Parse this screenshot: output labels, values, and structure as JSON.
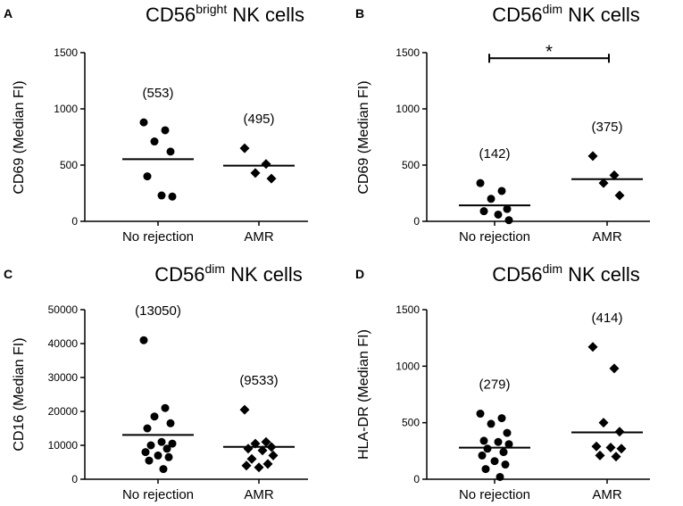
{
  "chart_data": [
    {
      "type": "scatter",
      "panel": "A",
      "title": {
        "main": "CD56",
        "sup": "bright",
        "rest": " NK cells"
      },
      "ylabel": "CD69 (Median FI)",
      "ylim": [
        0,
        1500
      ],
      "yticks": [
        "0",
        "500",
        "1000",
        "1500"
      ],
      "categories": [
        "No rejection",
        "AMR"
      ],
      "series": [
        {
          "name": "No rejection",
          "marker": "circle",
          "median": 553,
          "median_label": "(553)",
          "values": [
            880,
            810,
            710,
            620,
            400,
            230,
            220
          ]
        },
        {
          "name": "AMR",
          "marker": "diamond",
          "median": 495,
          "median_label": "(495)",
          "values": [
            650,
            510,
            430,
            380
          ]
        }
      ],
      "significance": null
    },
    {
      "type": "scatter",
      "panel": "B",
      "title": {
        "main": "CD56",
        "sup": "dim",
        "rest": " NK cells"
      },
      "ylabel": "CD69 (Median FI)",
      "ylim": [
        0,
        1500
      ],
      "yticks": [
        "0",
        "500",
        "1000",
        "1500"
      ],
      "categories": [
        "No rejection",
        "AMR"
      ],
      "series": [
        {
          "name": "No rejection",
          "marker": "circle",
          "median": 142,
          "median_label": "(142)",
          "values": [
            340,
            270,
            200,
            110,
            90,
            60,
            10
          ]
        },
        {
          "name": "AMR",
          "marker": "diamond",
          "median": 375,
          "median_label": "(375)",
          "values": [
            580,
            410,
            340,
            230
          ]
        }
      ],
      "significance": {
        "label": "*",
        "y": 1450
      }
    },
    {
      "type": "scatter",
      "panel": "C",
      "title": {
        "main": "CD56",
        "sup": "dim",
        "rest": " NK cells"
      },
      "ylabel": "CD16 (Median FI)",
      "ylim": [
        0,
        50000
      ],
      "yticks": [
        "0",
        "10000",
        "20000",
        "30000",
        "40000",
        "50000"
      ],
      "categories": [
        "No rejection",
        "AMR"
      ],
      "series": [
        {
          "name": "No rejection",
          "marker": "circle",
          "median": 13050,
          "median_label": "(13050)",
          "values": [
            41000,
            21000,
            18500,
            16500,
            15000,
            11000,
            10500,
            10000,
            9000,
            8000,
            7000,
            6500,
            5500,
            3000
          ]
        },
        {
          "name": "AMR",
          "marker": "diamond",
          "median": 9533,
          "median_label": "(9533)",
          "values": [
            20500,
            11000,
            10500,
            9500,
            9000,
            8500,
            7000,
            6000,
            4500,
            4000,
            3500
          ]
        }
      ],
      "significance": null
    },
    {
      "type": "scatter",
      "panel": "D",
      "title": {
        "main": "CD56",
        "sup": "dim",
        "rest": " NK cells"
      },
      "ylabel": "HLA-DR (Median FI)",
      "ylim": [
        0,
        1500
      ],
      "yticks": [
        "0",
        "500",
        "1000",
        "1500"
      ],
      "categories": [
        "No rejection",
        "AMR"
      ],
      "series": [
        {
          "name": "No rejection",
          "marker": "circle",
          "median": 279,
          "median_label": "(279)",
          "values": [
            580,
            540,
            490,
            410,
            340,
            330,
            310,
            270,
            240,
            210,
            160,
            130,
            90,
            20
          ]
        },
        {
          "name": "AMR",
          "marker": "diamond",
          "median": 414,
          "median_label": "(414)",
          "values": [
            1170,
            980,
            500,
            420,
            290,
            280,
            270,
            210,
            200
          ]
        }
      ],
      "significance": null
    }
  ]
}
